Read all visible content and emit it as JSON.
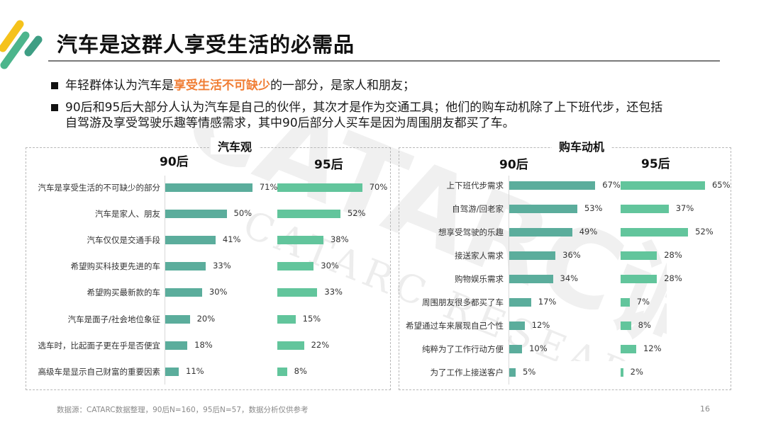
{
  "header": {
    "title": "汽车是这群人享受生活的必需品",
    "logo_colors": [
      "#F5C21B",
      "#4CB58C",
      "#3E9E84"
    ]
  },
  "bullets": [
    {
      "pre": "年轻群体认为汽车是",
      "highlight": "享受生活不可缺少",
      "post": "的一部分，是家人和朋友；"
    },
    {
      "line1": "90后和95后大部分人认为汽车是自己的伙伴，其次才是作为交通工具；他们的购车动机除了上下班代步，还包括",
      "line2": "自驾游及享受驾驶乐趣等情感需求，其中90后部分人买车是因为周围朋友都买了车。"
    }
  ],
  "colors": {
    "series_90": "#5BAD9C",
    "series_95": "#62C59C",
    "highlight": "#F07D34"
  },
  "watermark": {
    "main": "CATARC调研",
    "sub": "CATARC RESEARCH"
  },
  "footer": {
    "source": "数据源：CATARC数据整理，90后N=160，95后N=57，数据分析仅供参考",
    "page": "16"
  },
  "chart_data": [
    {
      "type": "bar",
      "orientation": "horizontal",
      "title": "汽车观",
      "categories": [
        "汽车是享受生活的不可缺少的部分",
        "汽车是家人、朋友",
        "汽车仅仅是交通手段",
        "希望购买科技更先进的车",
        "希望购买最新款的车",
        "汽车是面子/社会地位象征",
        "选车时，比起面子更在乎是否便宜",
        "高级车是显示自己财富的重要因素"
      ],
      "series": [
        {
          "name": "90后",
          "values": [
            71,
            50,
            41,
            33,
            30,
            20,
            18,
            11
          ],
          "labels": [
            "71%",
            "50%",
            "41%",
            "33%",
            "30%",
            "20%",
            "18%",
            "11%"
          ]
        },
        {
          "name": "95后",
          "values": [
            70,
            52,
            38,
            30,
            33,
            15,
            22,
            8
          ],
          "labels": [
            "70%",
            "52%",
            "38%",
            "30%",
            "33%",
            "15%",
            "22%",
            "8%"
          ]
        }
      ],
      "unit": "%",
      "xlabel": "",
      "ylabel": ""
    },
    {
      "type": "bar",
      "orientation": "horizontal",
      "title": "购车动机",
      "categories": [
        "上下班代步需求",
        "自驾游/回老家",
        "想享受驾驶的乐趣",
        "接送家人需求",
        "购物娱乐需求",
        "周围朋友很多都买了车",
        "希望通过车来展现自己个性",
        "纯粹为了工作行动方便",
        "为了工作上接送客户"
      ],
      "series": [
        {
          "name": "90后",
          "values": [
            67,
            53,
            49,
            36,
            34,
            17,
            12,
            10,
            5
          ],
          "labels": [
            "67%",
            "53%",
            "49%",
            "36%",
            "34%",
            "17%",
            "12%",
            "10%",
            "5%"
          ]
        },
        {
          "name": "95后",
          "values": [
            65,
            37,
            52,
            28,
            28,
            7,
            8,
            12,
            2
          ],
          "labels": [
            "65%",
            "37%",
            "52%",
            "28%",
            "28%",
            "7%",
            "8%",
            "12%",
            "2%"
          ]
        }
      ],
      "unit": "%",
      "xlabel": "",
      "ylabel": ""
    }
  ]
}
